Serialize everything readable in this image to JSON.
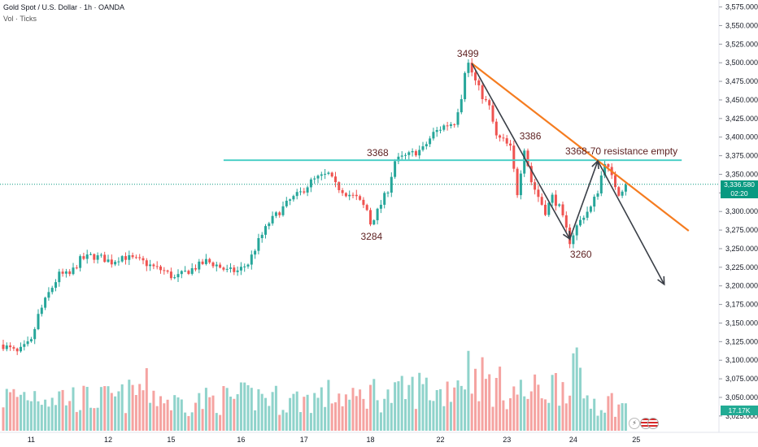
{
  "header": {
    "title": "Gold Spot / U.S. Dollar · 1h · OANDA",
    "volume_label": "Vol · Ticks"
  },
  "price_badge": {
    "value": "3,336.580",
    "countdown": "02:20"
  },
  "volume_badge": {
    "value": "17.17K"
  },
  "colors": {
    "up": "#26a69a",
    "down": "#ef5350",
    "vol_up": "#8fd3cb",
    "vol_down": "#f5a3a1",
    "resistance": "#4dd0c7",
    "trend": "#f57c20",
    "path": "#3a3f47",
    "badge": "#089981"
  },
  "chart_data": {
    "type": "candlestick",
    "symbol": "XAUUSD",
    "timeframe": "1h",
    "ylim": [
      3015,
      3580
    ],
    "y_ticks": [
      3025,
      3050,
      3075,
      3100,
      3125,
      3150,
      3175,
      3200,
      3225,
      3250,
      3275,
      3300,
      3325,
      3350,
      3375,
      3400,
      3425,
      3450,
      3475,
      3500,
      3525,
      3550,
      3575
    ],
    "y_tick_labels": [
      "3,025.000",
      "3,050.000",
      "3,075.000",
      "3,100.000",
      "3,125.000",
      "3,150.000",
      "3,175.000",
      "3,200.000",
      "3,225.000",
      "3,250.000",
      "3,275.000",
      "3,300.000",
      "3,325.000",
      "3,350.000",
      "3,375.000",
      "3,400.000",
      "3,425.000",
      "3,450.000",
      "3,475.000",
      "3,500.000",
      "3,525.000",
      "3,550.000",
      "3,575.000"
    ],
    "x_tick_labels": [
      "11",
      "12",
      "15",
      "16",
      "17",
      "18",
      "22",
      "23",
      "24",
      "25"
    ],
    "x_tick_index": [
      8,
      30,
      48,
      68,
      86,
      105,
      125,
      144,
      163,
      181
    ],
    "close_path": [
      [
        0,
        3120
      ],
      [
        4,
        3110
      ],
      [
        8,
        3125
      ],
      [
        10,
        3160
      ],
      [
        13,
        3190
      ],
      [
        16,
        3215
      ],
      [
        19,
        3215
      ],
      [
        22,
        3235
      ],
      [
        25,
        3240
      ],
      [
        28,
        3238
      ],
      [
        31,
        3232
      ],
      [
        34,
        3240
      ],
      [
        37,
        3236
      ],
      [
        40,
        3232
      ],
      [
        43,
        3225
      ],
      [
        46,
        3220
      ],
      [
        49,
        3210
      ],
      [
        52,
        3218
      ],
      [
        55,
        3225
      ],
      [
        58,
        3233
      ],
      [
        61,
        3228
      ],
      [
        64,
        3220
      ],
      [
        67,
        3220
      ],
      [
        70,
        3230
      ],
      [
        73,
        3260
      ],
      [
        76,
        3285
      ],
      [
        79,
        3300
      ],
      [
        82,
        3315
      ],
      [
        85,
        3325
      ],
      [
        88,
        3340
      ],
      [
        90,
        3345
      ],
      [
        93,
        3350
      ],
      [
        95,
        3335
      ],
      [
        98,
        3325
      ],
      [
        101,
        3318
      ],
      [
        104,
        3302
      ],
      [
        105,
        3284
      ],
      [
        107,
        3300
      ],
      [
        110,
        3330
      ],
      [
        112,
        3368
      ],
      [
        114,
        3372
      ],
      [
        117,
        3378
      ],
      [
        120,
        3384
      ],
      [
        123,
        3405
      ],
      [
        126,
        3415
      ],
      [
        129,
        3420
      ],
      [
        131,
        3455
      ],
      [
        132,
        3490
      ],
      [
        133,
        3499
      ],
      [
        135,
        3475
      ],
      [
        137,
        3455
      ],
      [
        139,
        3440
      ],
      [
        141,
        3400
      ],
      [
        143,
        3395
      ],
      [
        145,
        3385
      ],
      [
        147,
        3325
      ],
      [
        149,
        3386
      ],
      [
        151,
        3340
      ],
      [
        153,
        3320
      ],
      [
        155,
        3300
      ],
      [
        157,
        3320
      ],
      [
        159,
        3305
      ],
      [
        161,
        3275
      ],
      [
        162,
        3260
      ],
      [
        164,
        3280
      ],
      [
        166,
        3295
      ],
      [
        168,
        3305
      ],
      [
        170,
        3328
      ],
      [
        172,
        3368
      ],
      [
        174,
        3345
      ],
      [
        176,
        3325
      ],
      [
        178,
        3336
      ]
    ],
    "volume_shape": [
      [
        0,
        45
      ],
      [
        10,
        52
      ],
      [
        15,
        48
      ],
      [
        25,
        42
      ],
      [
        35,
        45
      ],
      [
        40,
        60
      ],
      [
        48,
        38
      ],
      [
        55,
        40
      ],
      [
        60,
        42
      ],
      [
        70,
        45
      ],
      [
        75,
        48
      ],
      [
        80,
        40
      ],
      [
        90,
        45
      ],
      [
        95,
        50
      ],
      [
        100,
        40
      ],
      [
        105,
        55
      ],
      [
        110,
        45
      ],
      [
        120,
        60
      ],
      [
        125,
        50
      ],
      [
        133,
        85
      ],
      [
        140,
        62
      ],
      [
        145,
        55
      ],
      [
        150,
        50
      ],
      [
        155,
        58
      ],
      [
        160,
        65
      ],
      [
        163,
        90
      ],
      [
        166,
        48
      ],
      [
        170,
        40
      ],
      [
        175,
        38
      ],
      [
        178,
        30
      ]
    ],
    "annotations": [
      {
        "label": "3499",
        "i": 133,
        "price": 3499
      },
      {
        "label": "3368",
        "i": 110,
        "price": 3368
      },
      {
        "label": "3284",
        "i": 105,
        "price": 3284
      },
      {
        "label": "3386",
        "i": 149,
        "price": 3386
      },
      {
        "label": "3260",
        "i": 163,
        "price": 3260
      },
      {
        "label": "3368-70 resistance empty",
        "i": 170,
        "price": 3368
      }
    ],
    "resistance_line": {
      "price": 3369,
      "from_i": 63,
      "to_i": 194
    },
    "trend_line": {
      "from": [
        134,
        3499
      ],
      "to": [
        196,
        3274
      ]
    },
    "projection_path": [
      [
        134,
        3499
      ],
      [
        162,
        3263
      ],
      [
        170,
        3368
      ],
      [
        189,
        3202
      ]
    ],
    "last_price": 3336.58
  }
}
